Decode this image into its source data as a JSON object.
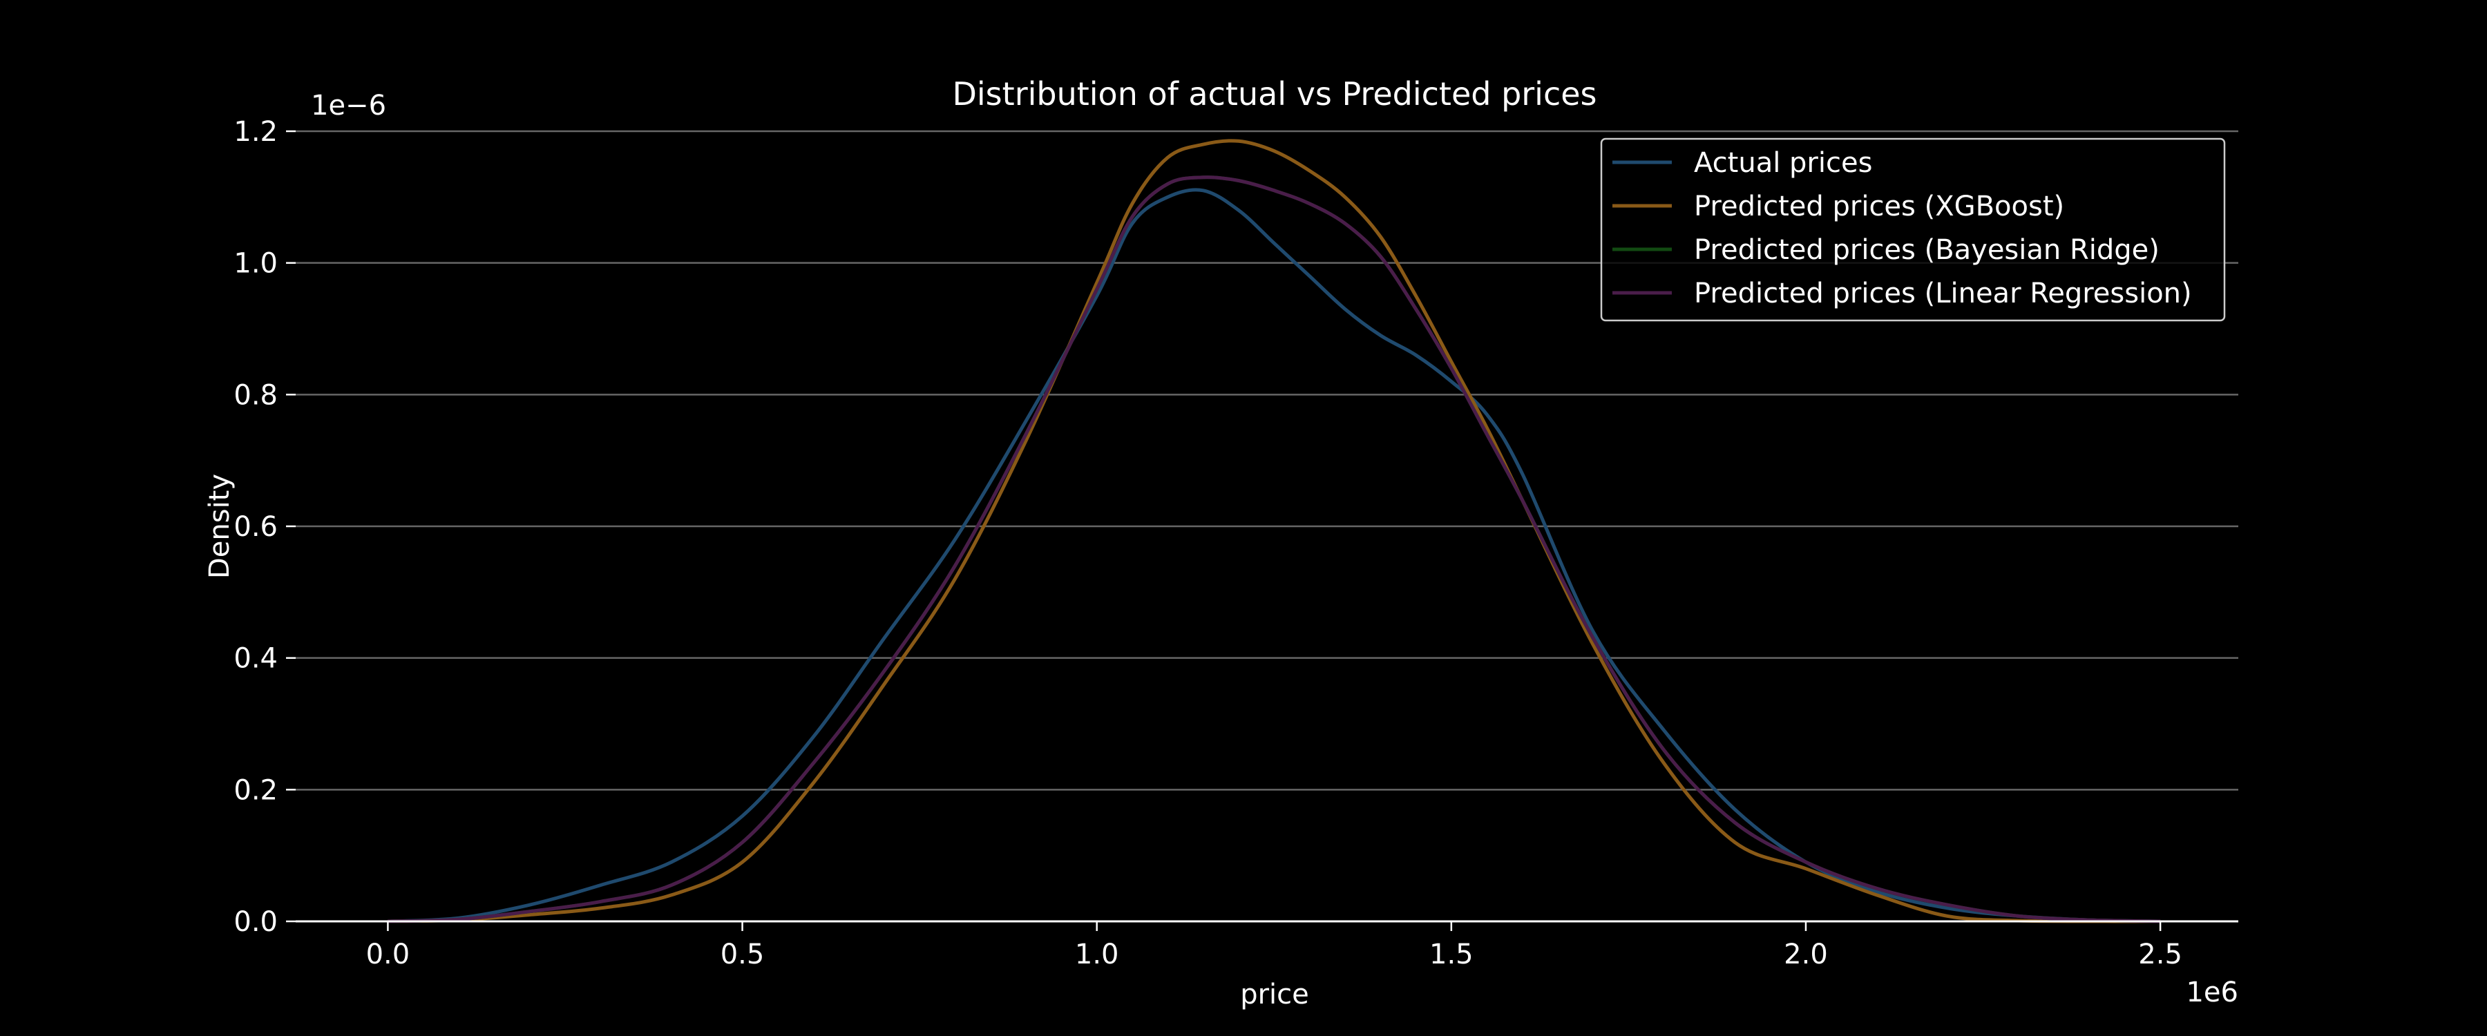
{
  "chart_data": {
    "type": "line",
    "title": "Distribution of actual vs Predicted prices",
    "xlabel": "price",
    "ylabel": "Density",
    "x_offset_label": "1e6",
    "y_offset_label": "1e−6",
    "xlim": [
      -0.13,
      2.61
    ],
    "ylim": [
      0,
      1.2
    ],
    "x_ticks": [
      0.0,
      0.5,
      1.0,
      1.5,
      2.0,
      2.5
    ],
    "x_tick_labels": [
      "0.0",
      "0.5",
      "1.0",
      "1.5",
      "2.0",
      "2.5"
    ],
    "y_ticks": [
      0.0,
      0.2,
      0.4,
      0.6,
      0.8,
      1.0,
      1.2
    ],
    "y_tick_labels": [
      "0.0",
      "0.2",
      "0.4",
      "0.6",
      "0.8",
      "1.0",
      "1.2"
    ],
    "grid": "horizontal",
    "legend_position": "top-right",
    "series": [
      {
        "name": "Actual prices",
        "color": "#1f4a6e",
        "x": [
          0.0,
          0.1,
          0.2,
          0.3,
          0.4,
          0.5,
          0.6,
          0.7,
          0.8,
          0.9,
          1.0,
          1.05,
          1.1,
          1.15,
          1.2,
          1.25,
          1.3,
          1.35,
          1.4,
          1.45,
          1.5,
          1.55,
          1.6,
          1.7,
          1.8,
          1.9,
          2.0,
          2.1,
          2.2,
          2.3,
          2.4,
          2.5
        ],
        "y": [
          0.0,
          0.005,
          0.025,
          0.055,
          0.09,
          0.16,
          0.28,
          0.43,
          0.58,
          0.76,
          0.95,
          1.06,
          1.1,
          1.11,
          1.08,
          1.03,
          0.98,
          0.93,
          0.89,
          0.86,
          0.82,
          0.77,
          0.68,
          0.44,
          0.29,
          0.17,
          0.09,
          0.045,
          0.02,
          0.008,
          0.002,
          0.0
        ]
      },
      {
        "name": "Predicted prices (XGBoost)",
        "color": "#8a5a17",
        "x": [
          0.0,
          0.1,
          0.2,
          0.3,
          0.4,
          0.5,
          0.6,
          0.7,
          0.8,
          0.9,
          1.0,
          1.05,
          1.1,
          1.15,
          1.2,
          1.25,
          1.3,
          1.35,
          1.4,
          1.45,
          1.5,
          1.55,
          1.6,
          1.7,
          1.8,
          1.9,
          2.0,
          2.1,
          2.2,
          2.3,
          2.4,
          2.5
        ],
        "y": [
          0.0,
          0.002,
          0.01,
          0.02,
          0.04,
          0.09,
          0.21,
          0.36,
          0.52,
          0.73,
          0.97,
          1.09,
          1.16,
          1.18,
          1.185,
          1.17,
          1.14,
          1.1,
          1.04,
          0.95,
          0.85,
          0.75,
          0.64,
          0.42,
          0.24,
          0.12,
          0.08,
          0.04,
          0.008,
          0.001,
          0.0,
          0.0
        ]
      },
      {
        "name": "Predicted prices (Bayesian Ridge)",
        "color": "#124a12",
        "x": [
          0.0,
          0.1,
          0.2,
          0.3,
          0.4,
          0.5,
          0.6,
          0.7,
          0.8,
          0.9,
          1.0,
          1.05,
          1.1,
          1.15,
          1.2,
          1.25,
          1.3,
          1.35,
          1.4,
          1.45,
          1.5,
          1.55,
          1.6,
          1.7,
          1.8,
          1.9,
          2.0,
          2.1,
          2.2,
          2.3,
          2.4,
          2.5
        ],
        "y": [
          0.0,
          0.003,
          0.015,
          0.03,
          0.055,
          0.12,
          0.24,
          0.38,
          0.54,
          0.74,
          0.96,
          1.07,
          1.12,
          1.13,
          1.125,
          1.11,
          1.09,
          1.06,
          1.01,
          0.93,
          0.84,
          0.74,
          0.64,
          0.43,
          0.26,
          0.15,
          0.09,
          0.05,
          0.025,
          0.008,
          0.002,
          0.0
        ]
      },
      {
        "name": "Predicted prices (Linear Regression)",
        "color": "#4a1d4a",
        "x": [
          0.0,
          0.1,
          0.2,
          0.3,
          0.4,
          0.5,
          0.6,
          0.7,
          0.8,
          0.9,
          1.0,
          1.05,
          1.1,
          1.15,
          1.2,
          1.25,
          1.3,
          1.35,
          1.4,
          1.45,
          1.5,
          1.55,
          1.6,
          1.7,
          1.8,
          1.9,
          2.0,
          2.1,
          2.2,
          2.3,
          2.4,
          2.5
        ],
        "y": [
          0.0,
          0.003,
          0.015,
          0.03,
          0.055,
          0.12,
          0.24,
          0.38,
          0.54,
          0.74,
          0.96,
          1.07,
          1.12,
          1.13,
          1.125,
          1.11,
          1.09,
          1.06,
          1.01,
          0.93,
          0.84,
          0.74,
          0.64,
          0.43,
          0.26,
          0.15,
          0.09,
          0.05,
          0.025,
          0.008,
          0.002,
          0.0
        ]
      }
    ]
  }
}
